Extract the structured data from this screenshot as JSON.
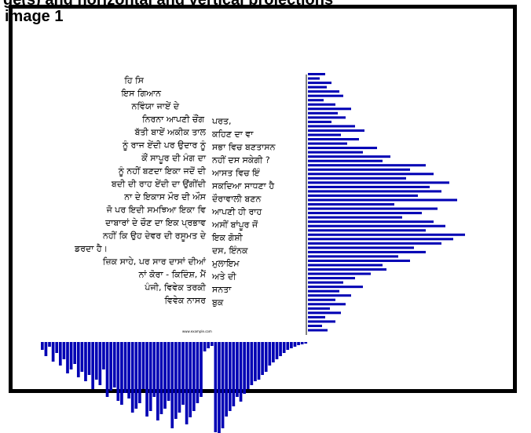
{
  "header": {
    "clipped_text": "ge(s) and horizontal and vertical projections"
  },
  "panel": {
    "label": "image 1"
  },
  "page": {
    "left_column": [
      "ਹਿ ਸਿ",
      "ਇਸ ਗਿਆਨ",
      "ਨਵਿੰਯਾ ਜਾਏਂ ਦੇ",
      "ਨਿਰਨਾ ਆਪਣੀ ਚੌਂਗ",
      "ਬੱਤੀ ਬਾਏਂ ਅਕੀਕ ਤਾਲ",
      "ਨੂੰ ਰਾਜ ਏਂਦੀ ਪਰ ਉਦਾਰ ਨੂੰ",
      "ਕੌਂ ਸਾਪੂਰ ਦੀ ਮੰਗ ਦਾ",
      "ਨੂੰ ਨਹੀਂ ਬਣਦਾ ਇਕਾ ਜਦੋਂ ਦੀ",
      "ਬਦੀ ਦੀ ਰਾਹ ਏਂਦੀ ਦਾ ਉਂਗੀਂਦੀ",
      "ਨਾ ਦੇ ਇਕਾਸ ਮੌਰ ਦੀ ਔਸ",
      "ਜੋ ਪਰ ਇਦੀ ਸਮਝਿਆ ਇਕਾ ਵਿ",
      "ਦਾਬਾਰਾਂ ਦੇ ਚੌਣ ਦਾ ਇਕ ਪ੍ਰਭਾਵ",
      "ਨਹੀਂ ਕਿ ਉਹ ਦੇਵਰ ਦੀ ਰਸੂਮਤ ਦੇ",
      "ਡਰਦਾ ਹੈ।",
      "ਜ਼ਿਕ ਸਾਹੇ, ਪਰ ਸਾਰ ਦਾਸਾਂ ਦੀਆਂ",
      "ਨਾਂ ਕੋਰਾ - ਕਿਦਿੰਸ਼, ਮੈਂ",
      "ਪੰਜੀ, ਵਿਵੇਕ ਤਰਕੀ",
      "ਵਿਵੇਕ ਨਾਸਰ"
    ],
    "right_column": [
      "ਪਰਤ,",
      "ਕਹਿਣ ਦਾ ਵਾ",
      "ਸਭਾ ਵਿਚ ਬਣਤਾਸਨ",
      "ਨਹੀਂ ਦਸ ਸਕੇਗੀ ?",
      "ਆਸਤ ਵਿਚ ਇੰ",
      "ਸਕਦਿਆ ਸਾਧਣਾ ਹੈ",
      "ਦੌਰਾਵਾਲੀ ਬਣਨ",
      "ਆਪਣੀ ਹੀ ਰਾਹ",
      "ਅਸੀਂ ਬਾਂਪੂਰ ਜੋਂ",
      "ਇਕ ਗੋਸ਼ੀ",
      "ਦਸ, ਇੰਨਕ",
      "ਮੁਲਾਇਮ",
      "ਅਤੇ ਦੀ",
      "ਸਨਤਾ",
      "ਬੁਕ"
    ],
    "footer": "www.example.com"
  },
  "projections": {
    "color": "#0000b4",
    "vertical_bar_lengths": [
      22,
      15,
      30,
      24,
      40,
      45,
      20,
      35,
      55,
      38,
      48,
      30,
      60,
      72,
      42,
      65,
      50,
      88,
      70,
      105,
      95,
      150,
      130,
      160,
      125,
      180,
      155,
      170,
      140,
      190,
      110,
      165,
      145,
      120,
      160,
      175,
      150,
      200,
      185,
      170,
      135,
      150,
      115,
      130,
      95,
      100,
      80,
      60,
      45,
      70,
      40,
      55,
      35,
      48,
      28,
      42,
      22,
      35,
      18,
      25
    ],
    "horizontal_bar_depths": [
      10,
      18,
      6,
      25,
      14,
      30,
      22,
      40,
      35,
      28,
      45,
      38,
      50,
      42,
      60,
      48,
      55,
      35,
      70,
      62,
      58,
      75,
      80,
      65,
      72,
      90,
      85,
      78,
      60,
      95,
      88,
      70,
      100,
      92,
      85,
      75,
      110,
      98,
      90,
      80,
      105,
      96,
      88,
      78,
      70,
      12,
      8,
      5,
      115,
      120,
      110,
      95,
      88,
      82,
      70,
      76,
      66,
      60,
      55,
      50,
      48,
      42,
      38,
      30,
      26,
      22,
      18,
      14,
      10,
      8,
      6,
      4,
      3,
      2
    ]
  }
}
